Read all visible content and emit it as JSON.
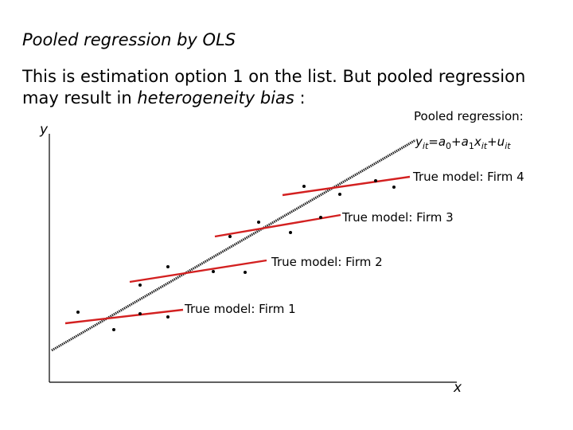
{
  "slide": {
    "title": "Pooled regression by OLS",
    "text_1": "This is estimation option 1 on the list. But pooled regression may result in ",
    "text_em": "heterogeneity bias",
    "text_2": " :"
  },
  "diagram": {
    "y_axis_label": "y",
    "x_axis_label": "x",
    "pooled_label": "Pooled regression:",
    "equation": {
      "y": "y",
      "y_sub": "it",
      "eq": "=",
      "a0": "a",
      "a0_sub": "0",
      "plus1": "+",
      "a1": "a",
      "a1_sub": "1",
      "x": "x",
      "x_sub": "it",
      "plus2": "+",
      "u": "u",
      "u_sub": "it"
    },
    "firm_labels": [
      "True model: Firm 1",
      "True model: Firm 2",
      "True model: Firm 3",
      "True model: Firm 4"
    ],
    "colors": {
      "firm_line": "#d32020",
      "pooled_line": "#222222",
      "axis": "#000000",
      "point": "#000000"
    }
  }
}
